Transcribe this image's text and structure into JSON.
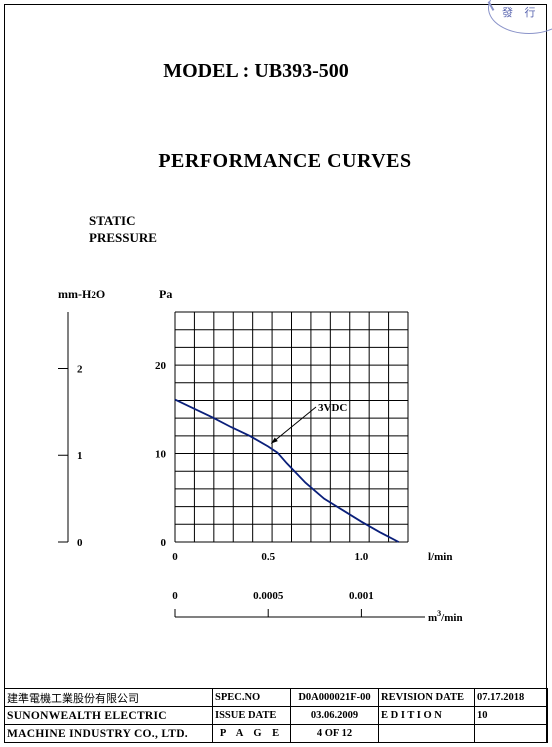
{
  "stamp": {
    "text": "發 行"
  },
  "header": {
    "model": "MODEL : UB393-500",
    "section_title": "PERFORMANCE  CURVES"
  },
  "chart_data": {
    "type": "line",
    "title": "",
    "ylabel": "STATIC PRESSURE",
    "y_label_lines": [
      "STATIC",
      "PRESSURE"
    ],
    "y_units": {
      "left": "mm-H2O",
      "right": "Pa"
    },
    "xlabel": "l/min",
    "x2label": "m³/min",
    "x2label_base": "m",
    "x2label_sup": "3",
    "x2label_tail": "/min",
    "xlim": [
      0,
      1.25
    ],
    "ylim": [
      0,
      26
    ],
    "grid": true,
    "x_ticks": [
      "0",
      "0.5",
      "1.0"
    ],
    "x_tick_values": [
      0,
      0.5,
      1.0
    ],
    "x2_ticks": [
      "0",
      "0.0005",
      "0.001"
    ],
    "x2_tick_values": [
      0,
      0.5,
      1.0
    ],
    "y_ticks_pa": [
      "0",
      "10",
      "20"
    ],
    "y_tick_values_pa": [
      0,
      10,
      20
    ],
    "y_ticks_mm": [
      "0",
      "1",
      "2"
    ],
    "y_tick_values_mm": [
      0,
      1,
      2
    ],
    "series": [
      {
        "name": "3VDC",
        "x": [
          0,
          0.1,
          0.2,
          0.3,
          0.4,
          0.5,
          0.55,
          0.6,
          0.7,
          0.8,
          0.9,
          1.0,
          1.1,
          1.2
        ],
        "values": [
          16.1,
          15.1,
          14.1,
          13.0,
          12.0,
          10.8,
          10.1,
          8.9,
          6.7,
          4.9,
          3.6,
          2.3,
          1.1,
          0.0
        ]
      }
    ],
    "annotation": {
      "text": "3VDC",
      "at_x": 0.5,
      "at_y": 10.8
    }
  },
  "footer": {
    "company_cn": "建準電機工業股份有限公司",
    "company_en_1": "SUNONWEALTH  ELECTRIC",
    "company_en_2": "MACHINE  INDUSTRY  CO., LTD.",
    "spec_no_label": "SPEC.NO",
    "spec_no_value": "D0A000021F-00",
    "revision_date_label": "REVISION DATE",
    "revision_date_value": "07.17.2018",
    "issue_date_label": "ISSUE DATE",
    "issue_date_value": "03.06.2009",
    "edition_label": "E D I T I O N",
    "edition_value": "10",
    "page_label": "P A G E",
    "page_value": "4   OF   12"
  }
}
